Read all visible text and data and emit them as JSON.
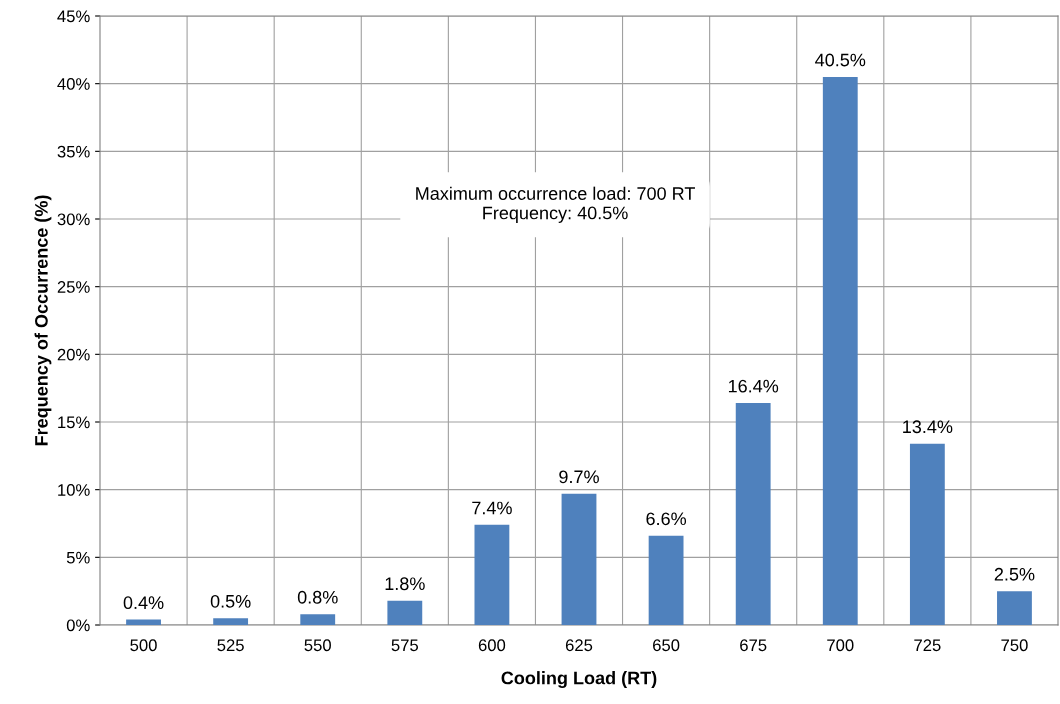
{
  "chart_data": {
    "type": "bar",
    "xlabel": "Cooling Load (RT)",
    "ylabel": "Frequency of Occurrence (%)",
    "categories": [
      "500",
      "525",
      "550",
      "575",
      "600",
      "625",
      "650",
      "675",
      "700",
      "725",
      "750"
    ],
    "values": [
      0.4,
      0.5,
      0.8,
      1.8,
      7.4,
      9.7,
      6.6,
      16.4,
      40.5,
      13.4,
      2.5
    ],
    "value_labels": [
      "0.4%",
      "0.5%",
      "0.8%",
      "1.8%",
      "7.4%",
      "9.7%",
      "6.6%",
      "16.4%",
      "40.5%",
      "13.4%",
      "2.5%"
    ],
    "color": "#4f81bd",
    "ylim": [
      0,
      45
    ],
    "yticks": [
      {
        "value": 0,
        "label": "0%"
      },
      {
        "value": 5,
        "label": "5%"
      },
      {
        "value": 10,
        "label": "10%"
      },
      {
        "value": 15,
        "label": "15%"
      },
      {
        "value": 20,
        "label": "20%"
      },
      {
        "value": 25,
        "label": "25%"
      },
      {
        "value": 30,
        "label": "30%"
      },
      {
        "value": 35,
        "label": "35%"
      },
      {
        "value": 40,
        "label": "40%"
      },
      {
        "value": 45,
        "label": "45%"
      }
    ],
    "grid": true,
    "annotations": [
      "Maximum occurrence load: 700 RT\nFrequency: 40.5%"
    ]
  }
}
